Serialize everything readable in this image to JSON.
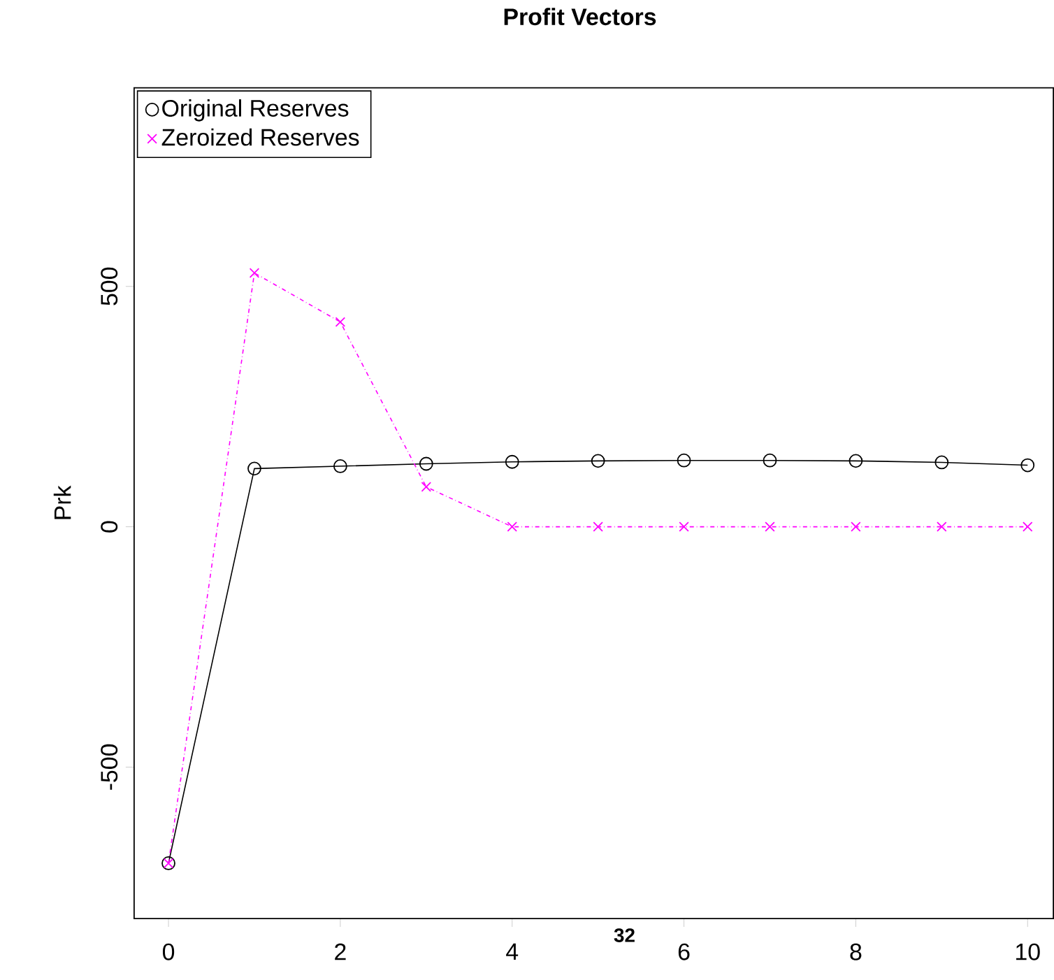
{
  "chart_data": {
    "type": "line",
    "title": "Profit Vectors",
    "ylabel": "Prk",
    "x": [
      0,
      1,
      2,
      3,
      4,
      5,
      6,
      7,
      8,
      9,
      10
    ],
    "series": [
      {
        "name": "Original Reserves",
        "color": "#000000",
        "marker": "circle",
        "line_style": "solid",
        "values": [
          -700,
          121,
          126,
          131,
          135,
          137,
          138,
          138,
          137,
          134,
          128
        ]
      },
      {
        "name": "Zeroized Reserves",
        "color": "#ff00ff",
        "marker": "cross",
        "line_style": "dashdot",
        "values": [
          -700,
          528,
          426,
          83,
          0,
          0,
          0,
          0,
          0,
          0,
          0
        ]
      }
    ],
    "xlim": [
      -0.4,
      10.3
    ],
    "ylim": [
      -815,
      913
    ],
    "xticks": [
      0,
      2,
      4,
      6,
      8,
      10
    ],
    "yticks": [
      -500,
      0,
      500
    ],
    "legend": "top left",
    "grid": false,
    "annotations": [
      "32"
    ]
  }
}
